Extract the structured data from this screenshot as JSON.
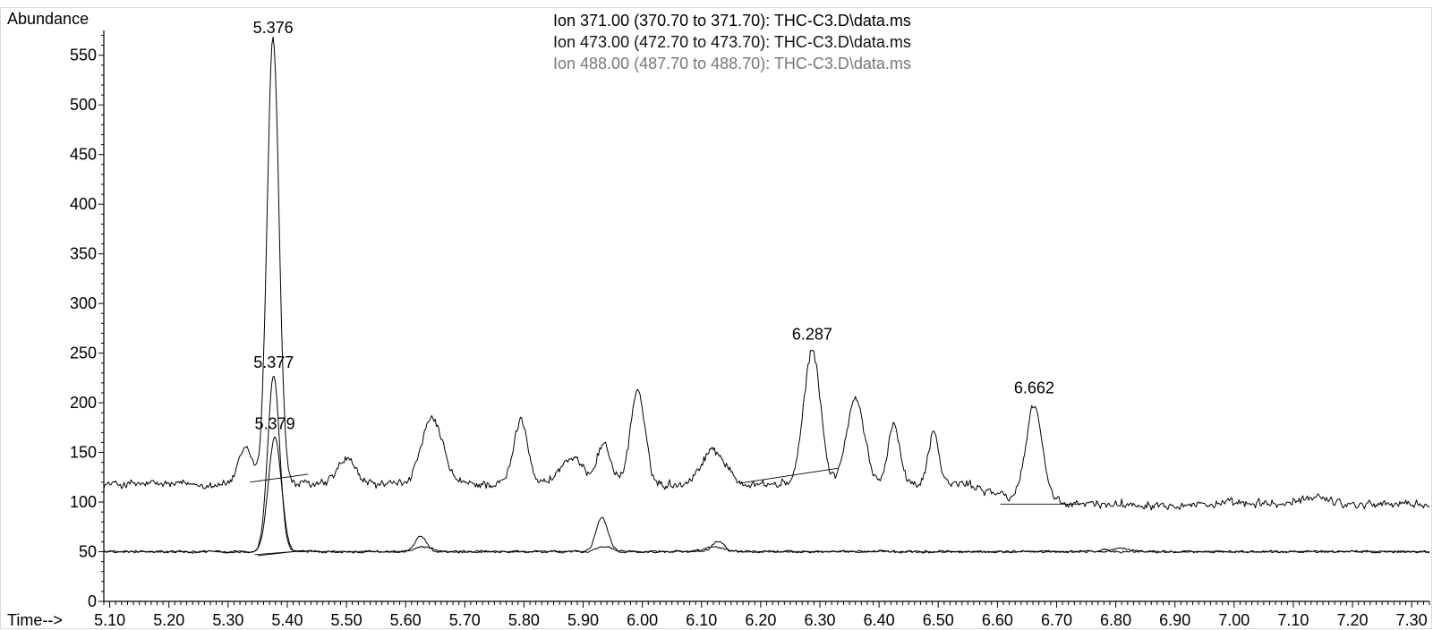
{
  "chart_data": {
    "type": "line",
    "ylabel": "Abundance",
    "xlabel": "Time-->",
    "xlim": [
      5.09,
      7.33
    ],
    "ylim": [
      0,
      575
    ],
    "x_ticks": [
      "5.10",
      "5.20",
      "5.30",
      "5.40",
      "5.50",
      "5.60",
      "5.70",
      "5.80",
      "5.90",
      "6.00",
      "6.10",
      "6.20",
      "6.30",
      "6.40",
      "6.50",
      "6.60",
      "6.70",
      "6.80",
      "6.90",
      "7.00",
      "7.10",
      "7.20",
      "7.30"
    ],
    "y_ticks": [
      "0",
      "50",
      "100",
      "150",
      "200",
      "250",
      "300",
      "350",
      "400",
      "450",
      "500",
      "550"
    ],
    "legend": [
      {
        "text": "Ion 371.00 (370.70 to 371.70): THC-C3.D\\data.ms",
        "color": "#000000"
      },
      {
        "text": "Ion 473.00 (472.70 to 473.70): THC-C3.D\\data.ms",
        "color": "#111111"
      },
      {
        "text": "Ion 488.00 (487.70 to 488.70): THC-C3.D\\data.ms",
        "color": "#777777"
      }
    ],
    "series": [
      {
        "name": "Ion 371.00",
        "baseline": 118,
        "noise": 6,
        "peaks": [
          [
            5.33,
            35,
            0.012
          ],
          [
            5.376,
            452,
            0.01
          ],
          [
            5.5,
            25,
            0.015
          ],
          [
            5.645,
            65,
            0.018
          ],
          [
            5.795,
            65,
            0.012
          ],
          [
            5.88,
            25,
            0.02
          ],
          [
            5.935,
            40,
            0.012
          ],
          [
            5.992,
            95,
            0.012
          ],
          [
            6.12,
            35,
            0.02
          ],
          [
            6.287,
            135,
            0.014
          ],
          [
            6.36,
            85,
            0.015
          ],
          [
            6.425,
            62,
            0.01
          ],
          [
            6.492,
            52,
            0.009
          ],
          [
            6.662,
            100,
            0.014
          ],
          [
            7.14,
            8,
            0.02
          ]
        ],
        "tail": [
          [
            6.55,
            6.65,
            -20
          ]
        ],
        "annotations": [
          {
            "x": 5.376,
            "y": 567,
            "label": "5.376"
          },
          {
            "x": 6.287,
            "y": 258,
            "label": "6.287"
          },
          {
            "x": 6.662,
            "y": 204,
            "label": "6.662"
          }
        ],
        "integration_baselines": [
          [
            5.337,
            120,
            5.435,
            128
          ],
          [
            6.165,
            119,
            6.33,
            134
          ],
          [
            6.605,
            98,
            6.74,
            98
          ]
        ]
      },
      {
        "name": "Ion 473.00",
        "baseline": 50,
        "noise": 1.5,
        "peaks": [
          [
            5.377,
            178,
            0.01
          ],
          [
            5.625,
            15,
            0.01
          ],
          [
            5.932,
            35,
            0.01
          ],
          [
            6.128,
            10,
            0.01
          ],
          [
            6.8,
            3,
            0.02
          ]
        ],
        "annotations": [
          {
            "x": 5.377,
            "y": 230,
            "label": "5.377"
          }
        ],
        "integration_baselines": [
          [
            5.345,
            47,
            5.43,
            51
          ]
        ]
      },
      {
        "name": "Ion 488.00",
        "baseline": 50,
        "noise": 1.5,
        "peaks": [
          [
            5.379,
            115,
            0.011
          ],
          [
            5.63,
            5,
            0.015
          ],
          [
            5.935,
            5,
            0.012
          ],
          [
            6.12,
            5,
            0.015
          ]
        ],
        "annotations": [
          {
            "x": 5.379,
            "y": 168,
            "label": "5.379"
          }
        ],
        "integration_baselines": [
          [
            5.35,
            46,
            5.425,
            51
          ]
        ]
      }
    ]
  }
}
